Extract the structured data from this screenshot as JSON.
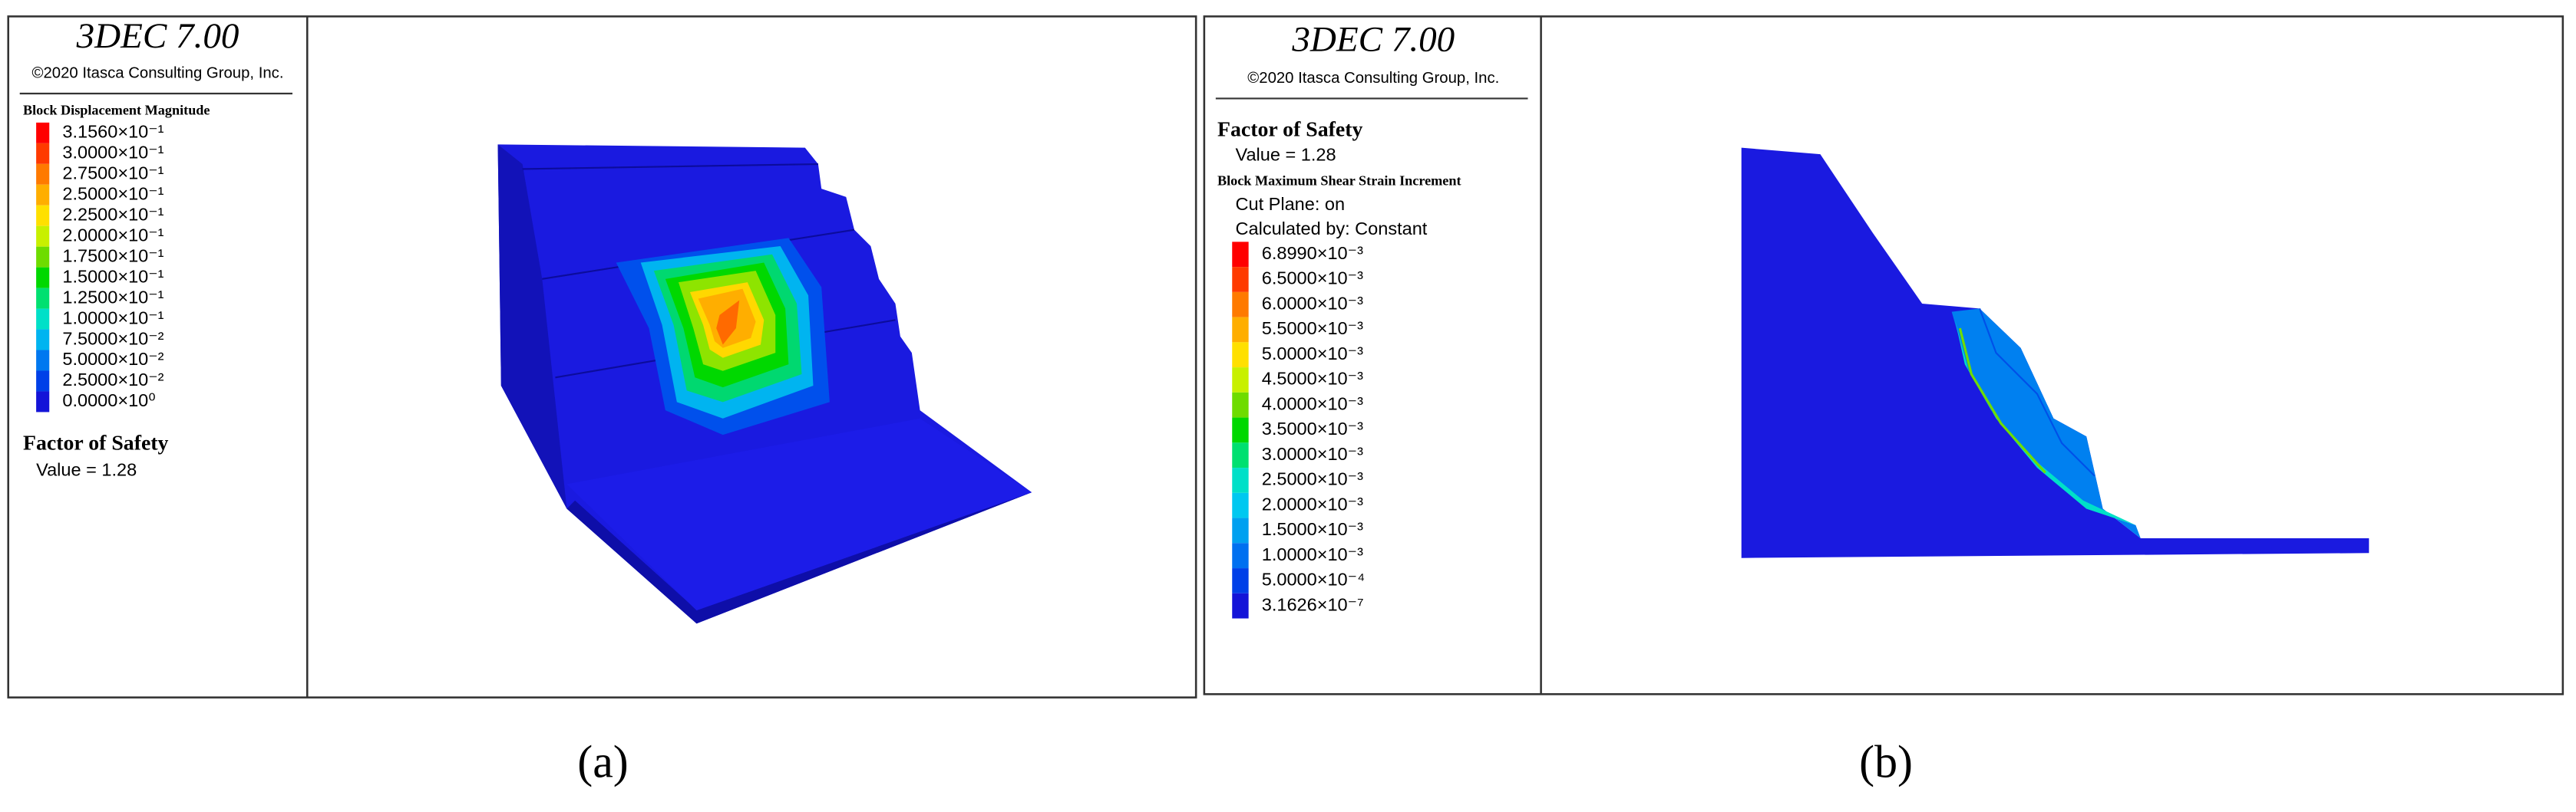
{
  "panels": [
    {
      "header": "3DEC 7.00",
      "copyright": "©2020 Itasca Consulting Group, Inc.",
      "lines": [
        "Block Displacement Magnitude"
      ],
      "legend": [
        {
          "label": "3.1560×10⁻¹",
          "color": "#ff0000"
        },
        {
          "label": "3.0000×10⁻¹",
          "color": "#ff3a00"
        },
        {
          "label": "2.7500×10⁻¹",
          "color": "#ff7a00"
        },
        {
          "label": "2.5000×10⁻¹",
          "color": "#ffae00"
        },
        {
          "label": "2.2500×10⁻¹",
          "color": "#ffe000"
        },
        {
          "label": "2.0000×10⁻¹",
          "color": "#c8f000"
        },
        {
          "label": "1.7500×10⁻¹",
          "color": "#6edc00"
        },
        {
          "label": "1.5000×10⁻¹",
          "color": "#00d800"
        },
        {
          "label": "1.2500×10⁻¹",
          "color": "#00e070"
        },
        {
          "label": "1.0000×10⁻¹",
          "color": "#00e0c8"
        },
        {
          "label": "7.5000×10⁻²",
          "color": "#00b4f0"
        },
        {
          "label": "5.0000×10⁻²",
          "color": "#0078f0"
        },
        {
          "label": "2.5000×10⁻²",
          "color": "#0040e8"
        },
        {
          "label": "0.0000×10⁰",
          "color": "#1414d8"
        }
      ],
      "fos_title": "Factor of Safety",
      "fos_value": "Value = 1.28",
      "caption": "(a)"
    },
    {
      "header": "3DEC 7.00",
      "copyright": "©2020 Itasca Consulting Group, Inc.",
      "fos_title": "Factor of Safety",
      "fos_value": "Value = 1.28",
      "lines": [
        "Block Maximum Shear Strain Increment",
        "Cut Plane: on",
        "Calculated by: Constant"
      ],
      "legend": [
        {
          "label": "6.8990×10⁻³",
          "color": "#ff0000"
        },
        {
          "label": "6.5000×10⁻³",
          "color": "#ff3a00"
        },
        {
          "label": "6.0000×10⁻³",
          "color": "#ff7a00"
        },
        {
          "label": "5.5000×10⁻³",
          "color": "#ffae00"
        },
        {
          "label": "5.0000×10⁻³",
          "color": "#ffe000"
        },
        {
          "label": "4.5000×10⁻³",
          "color": "#c8f000"
        },
        {
          "label": "4.0000×10⁻³",
          "color": "#6edc00"
        },
        {
          "label": "3.5000×10⁻³",
          "color": "#00d800"
        },
        {
          "label": "3.0000×10⁻³",
          "color": "#00e070"
        },
        {
          "label": "2.5000×10⁻³",
          "color": "#00e0c8"
        },
        {
          "label": "2.0000×10⁻³",
          "color": "#00c8f0"
        },
        {
          "label": "1.5000×10⁻³",
          "color": "#00a0f0"
        },
        {
          "label": "1.0000×10⁻³",
          "color": "#0070f0"
        },
        {
          "label": "5.0000×10⁻⁴",
          "color": "#0040e8"
        },
        {
          "label": "3.1626×10⁻⁷",
          "color": "#1414d8"
        }
      ],
      "caption": "(b)"
    }
  ]
}
